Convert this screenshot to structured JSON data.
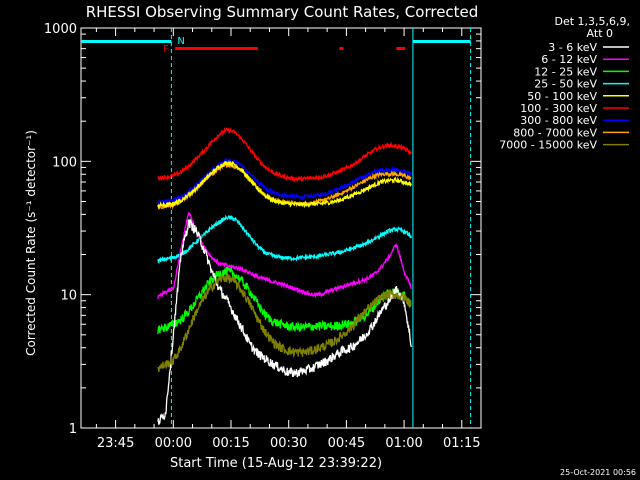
{
  "chart_data": {
    "type": "line",
    "title": "RHESSI Observing Summary Count Rates, Corrected",
    "xlabel": "Start Time (15-Aug-12 23:39:22)",
    "ylabel": "Corrected Count Rate (s⁻¹ detector⁻¹)",
    "yscale": "log",
    "ylim": [
      1,
      1000
    ],
    "xlim_minutes_after_2330": [
      6,
      110
    ],
    "x_ticks": [
      {
        "label": "23:45",
        "minute": 15
      },
      {
        "label": "00:00",
        "minute": 30
      },
      {
        "label": "00:15",
        "minute": 45
      },
      {
        "label": "00:30",
        "minute": 60
      },
      {
        "label": "00:45",
        "minute": 75
      },
      {
        "label": "01:00",
        "minute": 90
      },
      {
        "label": "01:15",
        "minute": 105
      }
    ],
    "y_ticks": [
      {
        "label": "1",
        "value": 1
      },
      {
        "label": "10",
        "value": 10
      },
      {
        "label": "100",
        "value": 100
      },
      {
        "label": "1000",
        "value": 1000
      }
    ],
    "x": [
      26,
      28,
      30,
      32,
      34,
      36,
      38,
      40,
      42,
      44,
      46,
      48,
      50,
      52,
      54,
      56,
      58,
      60,
      62,
      64,
      66,
      68,
      70,
      72,
      74,
      76,
      78,
      80,
      82,
      84,
      86,
      88,
      90,
      92
    ],
    "series": [
      {
        "name": "3 - 6 keV",
        "color": "#ffffff",
        "values": [
          1.1,
          1.3,
          5,
          20,
          35,
          30,
          22,
          15,
          11,
          9,
          7,
          5.5,
          4.2,
          3.6,
          3.3,
          3.0,
          2.8,
          2.6,
          2.6,
          2.7,
          2.8,
          3.0,
          3.2,
          3.5,
          3.8,
          4.0,
          4.4,
          5.0,
          6.0,
          7.5,
          9.0,
          11.0,
          9.0,
          4.0
        ]
      },
      {
        "name": "6 - 12 keV",
        "color": "#ff00ff",
        "values": [
          9.5,
          10.5,
          11,
          22,
          42,
          30,
          23,
          19,
          17,
          16.5,
          16,
          15.5,
          14.5,
          13.5,
          13,
          12.5,
          12,
          11.5,
          11,
          10.5,
          10,
          10,
          10.5,
          11,
          11.5,
          12,
          12.5,
          13,
          14,
          16,
          19,
          24,
          15,
          11
        ]
      },
      {
        "name": "12 - 25 keV",
        "color": "#00ff00",
        "values": [
          5.5,
          5.7,
          6,
          6.5,
          7.5,
          9,
          11,
          13,
          14.5,
          15,
          14.2,
          12.5,
          10.5,
          8.5,
          7,
          6.3,
          6,
          5.8,
          5.7,
          5.7,
          5.8,
          5.8,
          5.8,
          5.8,
          6,
          6,
          6.5,
          7,
          8,
          9.5,
          10.5,
          10.5,
          10,
          8
        ]
      },
      {
        "name": "25 - 50 keV",
        "color": "#00ffff",
        "values": [
          18,
          18.5,
          19,
          20,
          22,
          25,
          28,
          32,
          35,
          38,
          37,
          32,
          27,
          23,
          20.5,
          19.5,
          19,
          18.8,
          18.8,
          19,
          19.2,
          19.5,
          20,
          20.5,
          21,
          22,
          23,
          24,
          26,
          28,
          30,
          31,
          30,
          27
        ]
      },
      {
        "name": "50 - 100 keV",
        "color": "#ffff00",
        "values": [
          47,
          47,
          48,
          51,
          56,
          63,
          72,
          82,
          92,
          98,
          95,
          85,
          72,
          62,
          55,
          51,
          49,
          48,
          47.5,
          47.5,
          48,
          48,
          49,
          50,
          52,
          55,
          58,
          62,
          66,
          70,
          72,
          72,
          70,
          66
        ]
      },
      {
        "name": "100 - 300 keV",
        "color": "#ff0000",
        "values": [
          75,
          76,
          78,
          83,
          92,
          105,
          120,
          140,
          160,
          172,
          165,
          145,
          122,
          103,
          90,
          82,
          78,
          75,
          74,
          74,
          75,
          76,
          78,
          82,
          86,
          92,
          100,
          110,
          120,
          128,
          132,
          130,
          125,
          115
        ]
      },
      {
        "name": "300 - 800 keV",
        "color": "#0000ff",
        "values": [
          49,
          50,
          51,
          54,
          59,
          66,
          75,
          85,
          95,
          102,
          100,
          92,
          80,
          70,
          62,
          58,
          56,
          55,
          54,
          54,
          55,
          56,
          58,
          61,
          64,
          68,
          73,
          78,
          83,
          86,
          87,
          86,
          84,
          80
        ]
      },
      {
        "name": "800 - 7000 keV",
        "color": "#ffa500",
        "values": [
          45,
          46,
          47,
          50,
          55,
          62,
          71,
          80,
          89,
          94,
          92,
          84,
          73,
          63,
          56,
          52,
          50,
          49,
          48,
          48,
          49,
          50,
          52,
          55,
          58,
          62,
          67,
          72,
          77,
          80,
          81,
          80,
          78,
          74
        ]
      },
      {
        "name": "7000 - 15000 keV",
        "color": "#808000",
        "values": [
          2.8,
          3.0,
          3.2,
          4.0,
          5.5,
          7.5,
          9.5,
          11.5,
          13,
          13.5,
          12.5,
          10.5,
          8.5,
          6.5,
          5.2,
          4.4,
          4.0,
          3.8,
          3.7,
          3.7,
          3.8,
          4.0,
          4.2,
          4.5,
          5,
          5.6,
          6.5,
          7.5,
          8.5,
          9.5,
          10,
          10,
          9.5,
          8.5
        ]
      }
    ],
    "annotations": {
      "n_label": "N",
      "f_label": "F",
      "vlines_minutes": [
        29.5,
        92.3,
        107.3
      ],
      "night_bars_minutes": [
        [
          6,
          29.5
        ],
        [
          92.3,
          107.3
        ]
      ],
      "flare_bars_minutes": [
        [
          30.5,
          52
        ],
        [
          73.2,
          74.2
        ],
        [
          88,
          90.3
        ]
      ],
      "legend_header_1": "Det 1,3,5,6,9,",
      "legend_header_2": "Att 0",
      "timestamp": "25-Oct-2021 00:56"
    }
  }
}
